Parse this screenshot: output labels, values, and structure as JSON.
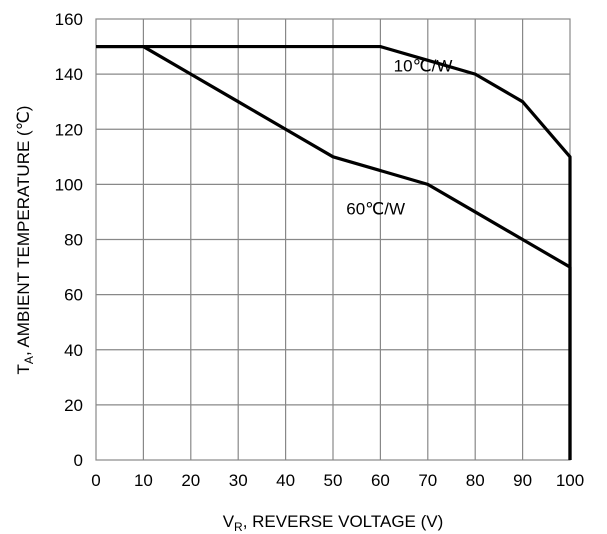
{
  "chart_data": {
    "type": "line",
    "xlabel": {
      "main": "V",
      "sub": "R",
      "rest": ", REVERSE VOLTAGE (V)"
    },
    "ylabel": {
      "main": "T",
      "sub": "A",
      "rest": ", AMBIENT TEMPERATURE (℃)"
    },
    "xlim": [
      0,
      100
    ],
    "ylim": [
      0,
      160
    ],
    "xticks": [
      0,
      10,
      20,
      30,
      40,
      50,
      60,
      70,
      80,
      90,
      100
    ],
    "yticks": [
      0,
      20,
      40,
      60,
      80,
      100,
      120,
      140,
      160
    ],
    "grid": true,
    "series": [
      {
        "name": "10℃/W",
        "x": [
          0,
          60,
          70,
          80,
          90,
          100,
          100
        ],
        "y": [
          150,
          150,
          145,
          140,
          130,
          110,
          0
        ]
      },
      {
        "name": "60℃/W",
        "x": [
          0,
          10,
          20,
          30,
          40,
          50,
          60,
          70,
          80,
          90,
          100,
          100
        ],
        "y": [
          150,
          150,
          140,
          130,
          120,
          110,
          105,
          100,
          90,
          80,
          70,
          0
        ]
      }
    ],
    "annotations": [
      {
        "text": "10℃/W",
        "x": 69,
        "y": 141
      },
      {
        "text": "60℃/W",
        "x": 59,
        "y": 89
      }
    ]
  }
}
